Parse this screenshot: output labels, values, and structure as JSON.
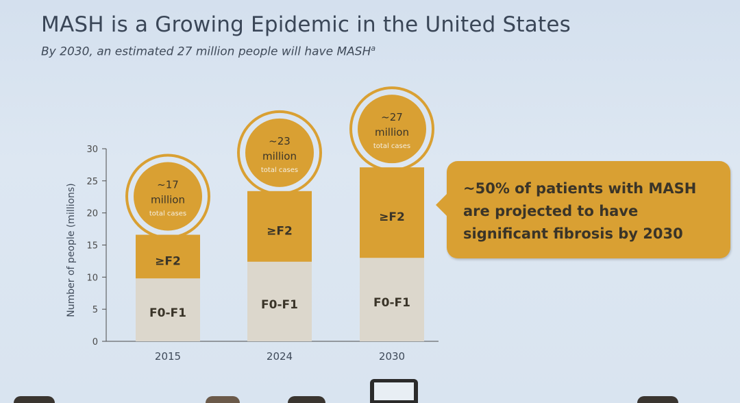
{
  "slide": {
    "title": "MASH is a Growing Epidemic in the United States",
    "subtitle_text": "By 2030, an estimated 27 million people will have MASH",
    "subtitle_footnote": "a"
  },
  "callout": {
    "text": "~50% of patients with MASH are projected to have significant fibrosis by 2030"
  },
  "colors": {
    "accent": "#d9a033",
    "lower_segment": "#dcd7cc",
    "text_dark": "#3a3428",
    "background": "#dbe5f0"
  },
  "chart_data": {
    "type": "bar",
    "stacked": true,
    "categories": [
      "2015",
      "2024",
      "2030"
    ],
    "ylabel": "Number of people (millions)",
    "xlabel": "",
    "ylim": [
      0,
      30
    ],
    "yticks": [
      0,
      5,
      10,
      15,
      20,
      25,
      30
    ],
    "series": [
      {
        "name": "F0-F1",
        "values": [
          9.8,
          12.4,
          13.0
        ]
      },
      {
        "name": "≥F2",
        "values": [
          6.8,
          11.0,
          14.1
        ]
      }
    ],
    "totals_labels": [
      {
        "value": "~17",
        "unit": "million",
        "note": "total cases"
      },
      {
        "value": "~23",
        "unit": "million",
        "note": "total cases"
      },
      {
        "value": "~27",
        "unit": "million",
        "note": "total cases"
      }
    ]
  }
}
